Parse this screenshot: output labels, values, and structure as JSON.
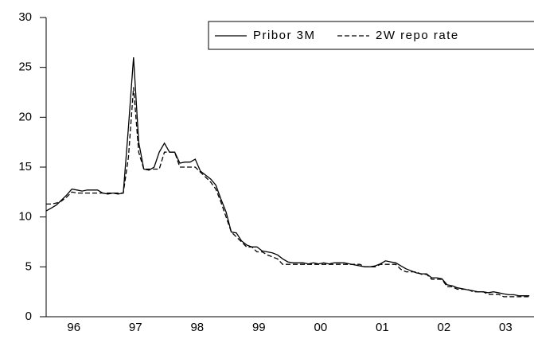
{
  "chart_data": {
    "type": "line",
    "categories": [
      null,
      null,
      null,
      null,
      null,
      null,
      "96",
      null,
      null,
      null,
      null,
      null,
      null,
      null,
      null,
      null,
      null,
      null,
      "97",
      null,
      null,
      null,
      null,
      null,
      null,
      null,
      null,
      null,
      null,
      null,
      "98",
      null,
      null,
      null,
      null,
      null,
      null,
      null,
      null,
      null,
      null,
      null,
      "99",
      null,
      null,
      null,
      null,
      null,
      null,
      null,
      null,
      null,
      null,
      null,
      "00",
      null,
      null,
      null,
      null,
      null,
      null,
      null,
      null,
      null,
      null,
      null,
      "01",
      null,
      null,
      null,
      null,
      null,
      null,
      null,
      null,
      null,
      null,
      null,
      "02",
      null,
      null,
      null,
      null,
      null,
      null,
      null,
      null,
      null,
      null,
      null,
      "03",
      null,
      null,
      null,
      null
    ],
    "series": [
      {
        "name": "Pribor 3M",
        "color": "#000000",
        "dash": "solid",
        "values": [
          10.6,
          10.9,
          11.2,
          11.7,
          12.2,
          12.8,
          12.7,
          12.6,
          12.7,
          12.7,
          12.7,
          12.4,
          12.3,
          12.4,
          12.3,
          12.4,
          19,
          26,
          17.5,
          14.8,
          14.7,
          15,
          16.5,
          17.4,
          16.5,
          16.5,
          15.4,
          15.5,
          15.5,
          15.8,
          14.6,
          14.2,
          13.8,
          13.2,
          11.8,
          10.5,
          8.5,
          8.4,
          7.6,
          7.2,
          7.0,
          7.0,
          6.6,
          6.5,
          6.4,
          6.2,
          5.8,
          5.5,
          5.4,
          5.4,
          5.4,
          5.3,
          5.4,
          5.3,
          5.4,
          5.3,
          5.4,
          5.4,
          5.4,
          5.3,
          5.2,
          5.1,
          5.0,
          5.0,
          5.1,
          5.3,
          5.6,
          5.5,
          5.4,
          5.1,
          4.8,
          4.6,
          4.4,
          4.3,
          4.3,
          3.9,
          3.9,
          3.8,
          3.2,
          3.1,
          2.9,
          2.8,
          2.7,
          2.6,
          2.5,
          2.5,
          2.4,
          2.5,
          2.4,
          2.3,
          2.2,
          2.2,
          2.1,
          2.1,
          2.1
        ]
      },
      {
        "name": "2W repo rate",
        "color": "#000000",
        "dash": "dashed",
        "values": [
          11.3,
          11.3,
          11.4,
          11.6,
          12.0,
          12.5,
          12.4,
          12.4,
          12.4,
          12.4,
          12.4,
          12.4,
          12.4,
          12.4,
          12.4,
          12.4,
          16,
          23,
          16.5,
          14.8,
          14.8,
          14.8,
          14.8,
          16.5,
          16.5,
          16.5,
          15.0,
          15.0,
          15.0,
          15.0,
          14.5,
          14.0,
          13.5,
          12.8,
          11.5,
          10.0,
          8.5,
          8.0,
          7.5,
          7.0,
          7.0,
          6.5,
          6.5,
          6.2,
          6.0,
          5.8,
          5.25,
          5.25,
          5.25,
          5.25,
          5.25,
          5.25,
          5.25,
          5.25,
          5.25,
          5.25,
          5.25,
          5.25,
          5.25,
          5.25,
          5.25,
          5.25,
          5.0,
          5.0,
          5.0,
          5.25,
          5.25,
          5.25,
          5.25,
          4.75,
          4.5,
          4.5,
          4.5,
          4.25,
          4.25,
          3.75,
          3.75,
          3.75,
          3.0,
          3.0,
          2.75,
          2.75,
          2.75,
          2.5,
          2.5,
          2.5,
          2.25,
          2.25,
          2.25,
          2.0,
          2.0,
          2.0,
          2.0,
          2.0,
          2.0
        ]
      }
    ],
    "ylim": [
      0,
      30
    ],
    "yticks": [
      0,
      5,
      10,
      15,
      20,
      25,
      30
    ],
    "legend": "top-right"
  }
}
